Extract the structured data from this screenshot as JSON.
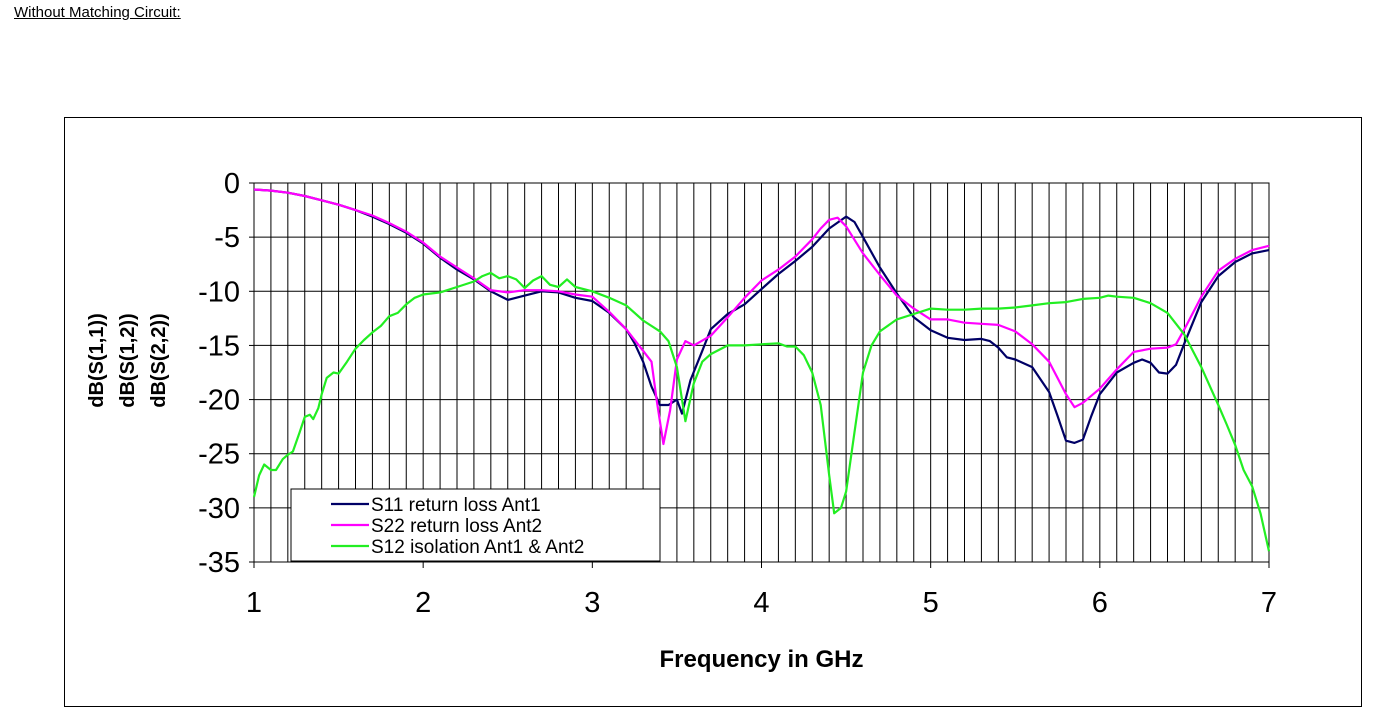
{
  "page": {
    "heading": "Without Matching Circuit:"
  },
  "chart_data": {
    "type": "line",
    "title": "",
    "xlabel": "Frequency in GHz",
    "ylabel_lines": [
      "dB(S(1,1))",
      "dB(S(1,2))",
      "dB(S(2,2))"
    ],
    "xlim": [
      1,
      7
    ],
    "ylim": [
      -35,
      0
    ],
    "x_ticks": [
      1,
      2,
      3,
      4,
      5,
      6,
      7
    ],
    "y_ticks": [
      0,
      -5,
      -10,
      -15,
      -20,
      -25,
      -30,
      -35
    ],
    "x_minor_step": 0.1,
    "grid": true,
    "legend_position": "bottom-left",
    "series": [
      {
        "name": "S11 return loss Ant1",
        "color": "#000066",
        "points": [
          [
            1.0,
            -0.6
          ],
          [
            1.1,
            -0.7
          ],
          [
            1.2,
            -0.9
          ],
          [
            1.3,
            -1.2
          ],
          [
            1.4,
            -1.6
          ],
          [
            1.5,
            -2.0
          ],
          [
            1.6,
            -2.5
          ],
          [
            1.7,
            -3.1
          ],
          [
            1.8,
            -3.8
          ],
          [
            1.9,
            -4.6
          ],
          [
            2.0,
            -5.6
          ],
          [
            2.1,
            -6.9
          ],
          [
            2.2,
            -8.0
          ],
          [
            2.3,
            -8.9
          ],
          [
            2.4,
            -10.0
          ],
          [
            2.5,
            -10.8
          ],
          [
            2.6,
            -10.4
          ],
          [
            2.7,
            -10.0
          ],
          [
            2.8,
            -10.1
          ],
          [
            2.9,
            -10.6
          ],
          [
            3.0,
            -10.9
          ],
          [
            3.1,
            -12.0
          ],
          [
            3.2,
            -13.5
          ],
          [
            3.25,
            -14.8
          ],
          [
            3.3,
            -16.5
          ],
          [
            3.35,
            -18.8
          ],
          [
            3.4,
            -20.5
          ],
          [
            3.45,
            -20.5
          ],
          [
            3.5,
            -20.0
          ],
          [
            3.53,
            -21.3
          ],
          [
            3.58,
            -18.2
          ],
          [
            3.65,
            -15.5
          ],
          [
            3.7,
            -13.5
          ],
          [
            3.8,
            -12.1
          ],
          [
            3.9,
            -11.2
          ],
          [
            4.0,
            -9.8
          ],
          [
            4.1,
            -8.4
          ],
          [
            4.2,
            -7.2
          ],
          [
            4.3,
            -5.9
          ],
          [
            4.4,
            -4.2
          ],
          [
            4.5,
            -3.1
          ],
          [
            4.55,
            -3.6
          ],
          [
            4.6,
            -5.0
          ],
          [
            4.7,
            -7.8
          ],
          [
            4.8,
            -10.2
          ],
          [
            4.9,
            -12.4
          ],
          [
            5.0,
            -13.6
          ],
          [
            5.1,
            -14.3
          ],
          [
            5.2,
            -14.5
          ],
          [
            5.3,
            -14.4
          ],
          [
            5.35,
            -14.6
          ],
          [
            5.4,
            -15.2
          ],
          [
            5.45,
            -16.1
          ],
          [
            5.5,
            -16.3
          ],
          [
            5.6,
            -17.0
          ],
          [
            5.7,
            -19.3
          ],
          [
            5.75,
            -21.5
          ],
          [
            5.8,
            -23.8
          ],
          [
            5.85,
            -24.0
          ],
          [
            5.9,
            -23.7
          ],
          [
            5.95,
            -21.5
          ],
          [
            6.0,
            -19.5
          ],
          [
            6.1,
            -17.5
          ],
          [
            6.2,
            -16.6
          ],
          [
            6.25,
            -16.3
          ],
          [
            6.3,
            -16.6
          ],
          [
            6.35,
            -17.5
          ],
          [
            6.4,
            -17.6
          ],
          [
            6.45,
            -16.8
          ],
          [
            6.5,
            -14.8
          ],
          [
            6.6,
            -11.0
          ],
          [
            6.7,
            -8.6
          ],
          [
            6.8,
            -7.3
          ],
          [
            6.9,
            -6.5
          ],
          [
            7.0,
            -6.2
          ]
        ]
      },
      {
        "name": "S22 return loss Ant2",
        "color": "#ff00ff",
        "points": [
          [
            1.0,
            -0.6
          ],
          [
            1.1,
            -0.7
          ],
          [
            1.2,
            -0.9
          ],
          [
            1.3,
            -1.2
          ],
          [
            1.4,
            -1.6
          ],
          [
            1.5,
            -2.0
          ],
          [
            1.6,
            -2.5
          ],
          [
            1.7,
            -3.0
          ],
          [
            1.8,
            -3.7
          ],
          [
            1.9,
            -4.5
          ],
          [
            2.0,
            -5.5
          ],
          [
            2.1,
            -6.8
          ],
          [
            2.2,
            -7.8
          ],
          [
            2.3,
            -8.8
          ],
          [
            2.4,
            -9.9
          ],
          [
            2.5,
            -10.1
          ],
          [
            2.6,
            -9.9
          ],
          [
            2.7,
            -9.9
          ],
          [
            2.8,
            -10.0
          ],
          [
            2.9,
            -10.3
          ],
          [
            3.0,
            -10.5
          ],
          [
            3.1,
            -11.9
          ],
          [
            3.2,
            -13.5
          ],
          [
            3.3,
            -15.5
          ],
          [
            3.35,
            -16.5
          ],
          [
            3.38,
            -20.0
          ],
          [
            3.42,
            -24.1
          ],
          [
            3.46,
            -21.0
          ],
          [
            3.5,
            -16.3
          ],
          [
            3.55,
            -14.6
          ],
          [
            3.6,
            -15.0
          ],
          [
            3.7,
            -14.1
          ],
          [
            3.8,
            -12.4
          ],
          [
            3.9,
            -10.6
          ],
          [
            4.0,
            -9.0
          ],
          [
            4.1,
            -8.0
          ],
          [
            4.2,
            -6.8
          ],
          [
            4.3,
            -5.2
          ],
          [
            4.35,
            -4.2
          ],
          [
            4.4,
            -3.4
          ],
          [
            4.45,
            -3.2
          ],
          [
            4.5,
            -4.0
          ],
          [
            4.6,
            -6.5
          ],
          [
            4.7,
            -8.5
          ],
          [
            4.8,
            -10.4
          ],
          [
            4.9,
            -11.6
          ],
          [
            5.0,
            -12.6
          ],
          [
            5.1,
            -12.6
          ],
          [
            5.2,
            -12.9
          ],
          [
            5.3,
            -13.0
          ],
          [
            5.4,
            -13.1
          ],
          [
            5.5,
            -13.7
          ],
          [
            5.6,
            -14.9
          ],
          [
            5.7,
            -16.5
          ],
          [
            5.8,
            -19.5
          ],
          [
            5.85,
            -20.7
          ],
          [
            5.9,
            -20.3
          ],
          [
            6.0,
            -19.0
          ],
          [
            6.1,
            -17.2
          ],
          [
            6.2,
            -15.6
          ],
          [
            6.3,
            -15.3
          ],
          [
            6.4,
            -15.2
          ],
          [
            6.45,
            -14.9
          ],
          [
            6.5,
            -13.5
          ],
          [
            6.6,
            -10.5
          ],
          [
            6.7,
            -8.1
          ],
          [
            6.8,
            -7.0
          ],
          [
            6.9,
            -6.2
          ],
          [
            7.0,
            -5.8
          ]
        ]
      },
      {
        "name": "S12 isolation Ant1 & Ant2",
        "color": "#22ee22",
        "points": [
          [
            1.0,
            -29.0
          ],
          [
            1.03,
            -27.0
          ],
          [
            1.06,
            -26.0
          ],
          [
            1.1,
            -26.5
          ],
          [
            1.13,
            -26.5
          ],
          [
            1.17,
            -25.5
          ],
          [
            1.2,
            -25.1
          ],
          [
            1.23,
            -24.8
          ],
          [
            1.27,
            -23.0
          ],
          [
            1.3,
            -21.6
          ],
          [
            1.33,
            -21.4
          ],
          [
            1.35,
            -21.8
          ],
          [
            1.38,
            -20.8
          ],
          [
            1.4,
            -19.5
          ],
          [
            1.43,
            -18.0
          ],
          [
            1.47,
            -17.5
          ],
          [
            1.5,
            -17.6
          ],
          [
            1.55,
            -16.5
          ],
          [
            1.6,
            -15.3
          ],
          [
            1.65,
            -14.5
          ],
          [
            1.7,
            -13.8
          ],
          [
            1.75,
            -13.2
          ],
          [
            1.8,
            -12.3
          ],
          [
            1.85,
            -12.0
          ],
          [
            1.9,
            -11.2
          ],
          [
            1.95,
            -10.6
          ],
          [
            2.0,
            -10.3
          ],
          [
            2.1,
            -10.1
          ],
          [
            2.2,
            -9.6
          ],
          [
            2.3,
            -9.1
          ],
          [
            2.35,
            -8.6
          ],
          [
            2.4,
            -8.3
          ],
          [
            2.45,
            -8.8
          ],
          [
            2.5,
            -8.6
          ],
          [
            2.55,
            -8.9
          ],
          [
            2.6,
            -9.7
          ],
          [
            2.65,
            -9.0
          ],
          [
            2.7,
            -8.6
          ],
          [
            2.75,
            -9.4
          ],
          [
            2.8,
            -9.6
          ],
          [
            2.85,
            -8.9
          ],
          [
            2.9,
            -9.6
          ],
          [
            3.0,
            -10.0
          ],
          [
            3.1,
            -10.6
          ],
          [
            3.2,
            -11.3
          ],
          [
            3.3,
            -12.7
          ],
          [
            3.4,
            -13.7
          ],
          [
            3.45,
            -14.6
          ],
          [
            3.5,
            -17.0
          ],
          [
            3.55,
            -22.0
          ],
          [
            3.6,
            -18.5
          ],
          [
            3.65,
            -16.5
          ],
          [
            3.7,
            -15.8
          ],
          [
            3.8,
            -15.0
          ],
          [
            3.9,
            -15.0
          ],
          [
            4.0,
            -14.9
          ],
          [
            4.1,
            -14.8
          ],
          [
            4.15,
            -15.1
          ],
          [
            4.2,
            -15.1
          ],
          [
            4.25,
            -15.9
          ],
          [
            4.3,
            -17.5
          ],
          [
            4.35,
            -20.5
          ],
          [
            4.4,
            -27.0
          ],
          [
            4.43,
            -30.5
          ],
          [
            4.47,
            -30.0
          ],
          [
            4.5,
            -28.5
          ],
          [
            4.55,
            -23.0
          ],
          [
            4.6,
            -17.5
          ],
          [
            4.65,
            -15.0
          ],
          [
            4.7,
            -13.7
          ],
          [
            4.8,
            -12.6
          ],
          [
            4.9,
            -12.1
          ],
          [
            5.0,
            -11.6
          ],
          [
            5.1,
            -11.7
          ],
          [
            5.2,
            -11.7
          ],
          [
            5.3,
            -11.6
          ],
          [
            5.4,
            -11.6
          ],
          [
            5.5,
            -11.5
          ],
          [
            5.6,
            -11.3
          ],
          [
            5.7,
            -11.1
          ],
          [
            5.8,
            -11.0
          ],
          [
            5.9,
            -10.7
          ],
          [
            6.0,
            -10.6
          ],
          [
            6.05,
            -10.4
          ],
          [
            6.1,
            -10.5
          ],
          [
            6.2,
            -10.6
          ],
          [
            6.3,
            -11.1
          ],
          [
            6.4,
            -12.0
          ],
          [
            6.5,
            -14.0
          ],
          [
            6.6,
            -17.0
          ],
          [
            6.7,
            -20.5
          ],
          [
            6.75,
            -22.3
          ],
          [
            6.8,
            -24.2
          ],
          [
            6.85,
            -26.5
          ],
          [
            6.9,
            -28.0
          ],
          [
            6.95,
            -30.5
          ],
          [
            7.0,
            -34.0
          ]
        ]
      }
    ]
  }
}
